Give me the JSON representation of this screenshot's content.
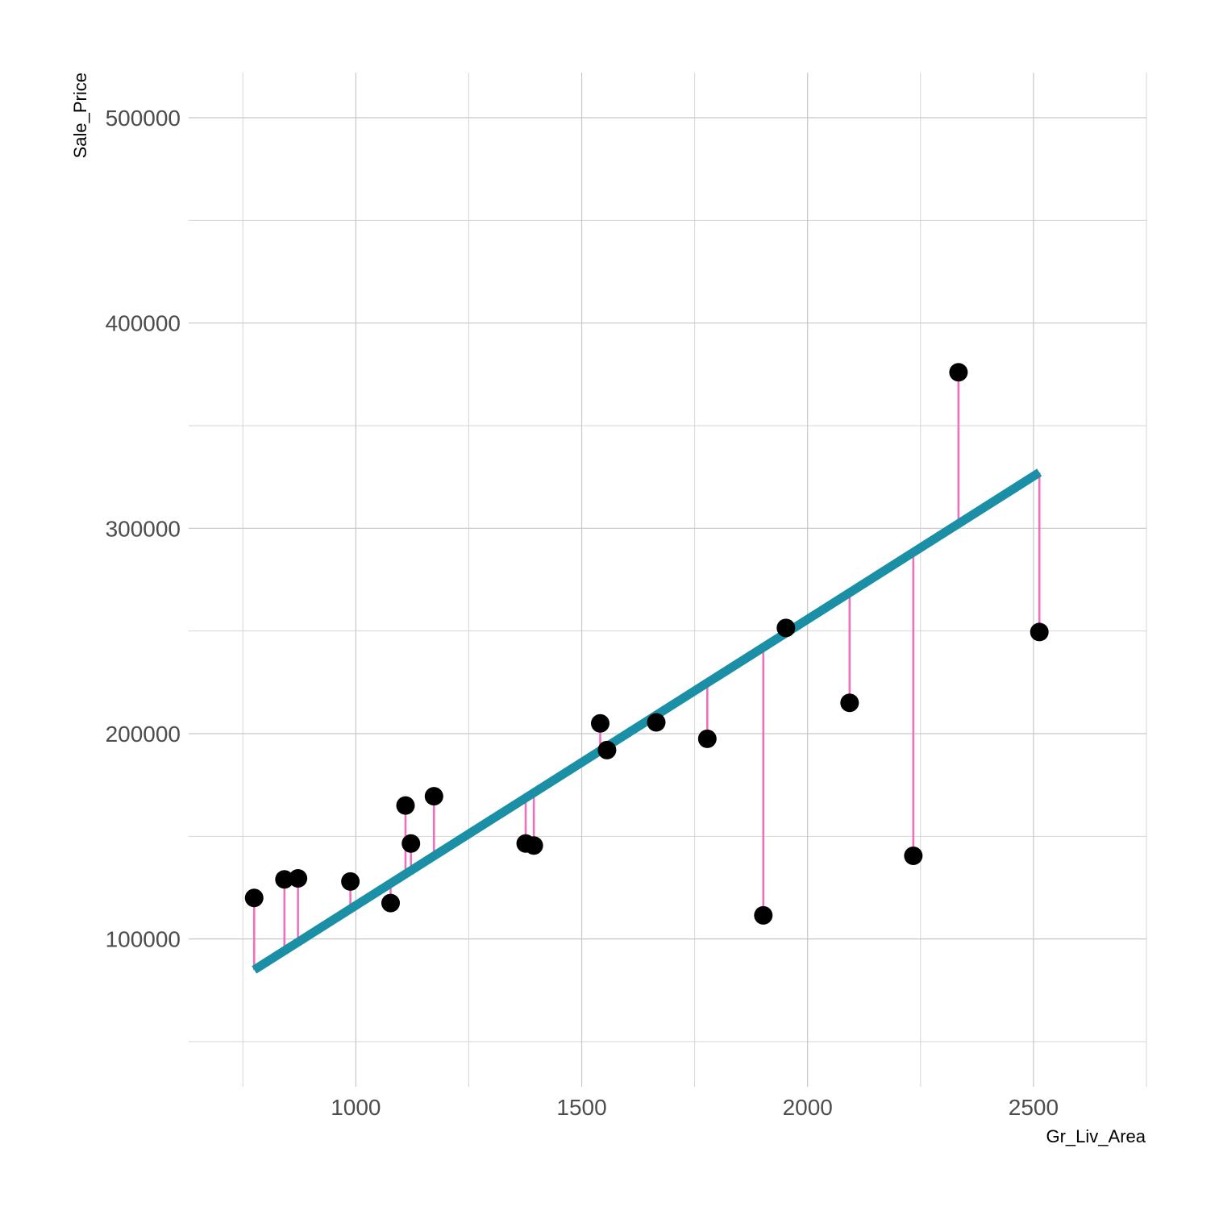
{
  "chart_data": {
    "type": "scatter",
    "title": "",
    "xlabel": "Gr_Liv_Area",
    "ylabel": "Sale_Price",
    "xlim": [
      630,
      2750
    ],
    "ylim": [
      28000,
      522000
    ],
    "x_ticks": [
      1000,
      1500,
      2000,
      2500
    ],
    "x_tick_labels": [
      "1000",
      "1500",
      "2000",
      "2500"
    ],
    "y_ticks": [
      100000,
      200000,
      300000,
      400000,
      500000
    ],
    "y_tick_labels": [
      "100000",
      "200000",
      "300000",
      "400000",
      "500000"
    ],
    "x_minor_ticks": [
      750,
      1250,
      1750,
      2250,
      2750
    ],
    "y_minor_ticks": [
      50000,
      150000,
      250000,
      350000,
      450000
    ],
    "grid": true,
    "regression_line": {
      "intercept": -23100,
      "slope": 139.4,
      "color": "#1a8fa5"
    },
    "residual_color": "#ee6fbc",
    "point_color": "#000000",
    "points": [
      {
        "x": 775,
        "y": 120000
      },
      {
        "x": 842,
        "y": 129000
      },
      {
        "x": 872,
        "y": 129500
      },
      {
        "x": 988,
        "y": 128000
      },
      {
        "x": 1077,
        "y": 117500
      },
      {
        "x": 1110,
        "y": 165000
      },
      {
        "x": 1122,
        "y": 146500
      },
      {
        "x": 1173,
        "y": 169500
      },
      {
        "x": 1376,
        "y": 146500
      },
      {
        "x": 1394,
        "y": 145500
      },
      {
        "x": 1541,
        "y": 205000
      },
      {
        "x": 1556,
        "y": 192000
      },
      {
        "x": 1665,
        "y": 205500
      },
      {
        "x": 1778,
        "y": 197500
      },
      {
        "x": 1902,
        "y": 111500
      },
      {
        "x": 1952,
        "y": 251500
      },
      {
        "x": 2093,
        "y": 215000
      },
      {
        "x": 2234,
        "y": 140500
      },
      {
        "x": 2334,
        "y": 376000
      },
      {
        "x": 2513,
        "y": 249500
      }
    ]
  }
}
